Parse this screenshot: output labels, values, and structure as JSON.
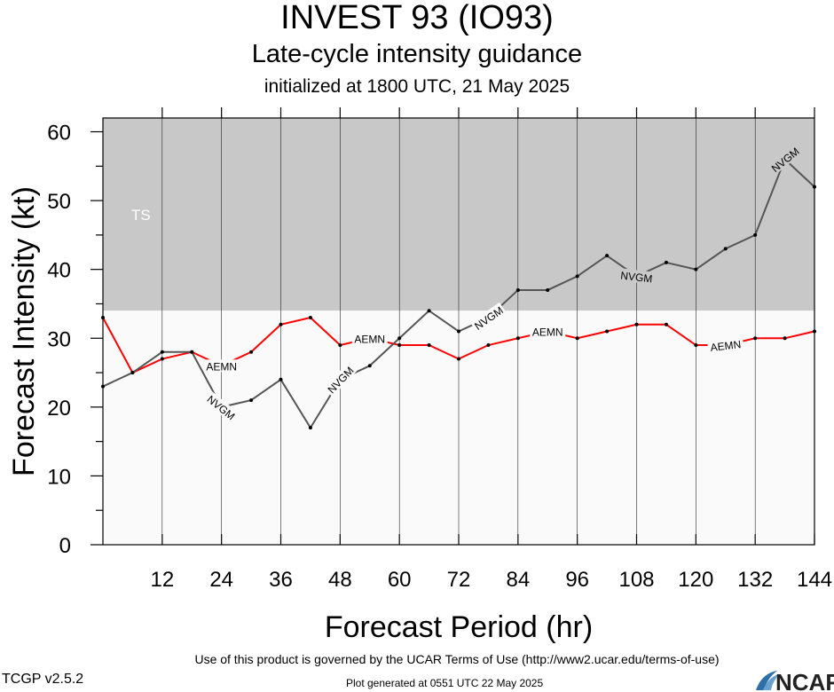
{
  "title": "INVEST 93 (IO93)",
  "subtitle": "Late-cycle intensity guidance",
  "initialized": "initialized at 1800 UTC, 21 May 2025",
  "footer": {
    "terms": "Use of this product is governed by the UCAR Terms of Use (http://www2.ucar.edu/terms-of-use)",
    "version": "TCGP v2.5.2",
    "generated": "Plot generated at 0551 UTC   22 May 2025",
    "logo_text": "NCAR"
  },
  "chart_data": {
    "type": "line",
    "xlabel": "Forecast Period (hr)",
    "ylabel": "Forecast Intensity (kt)",
    "xlim": [
      0,
      144
    ],
    "ylim": [
      0,
      62
    ],
    "x_ticks": [
      12,
      24,
      36,
      48,
      60,
      72,
      84,
      96,
      108,
      120,
      132,
      144
    ],
    "y_ticks": [
      0,
      10,
      20,
      30,
      40,
      50,
      60
    ],
    "grid": true,
    "bands": [
      {
        "label": "TS",
        "from": 34,
        "to": 62,
        "color": "#c8c8c8"
      },
      {
        "label": "",
        "from": 0,
        "to": 34,
        "color": "#fafafa"
      }
    ],
    "series": [
      {
        "name": "AEMN",
        "color": "#ff0000",
        "x": [
          0,
          6,
          12,
          18,
          24,
          30,
          36,
          42,
          48,
          54,
          60,
          66,
          72,
          78,
          84,
          90,
          96,
          102,
          108,
          114,
          120,
          126,
          132,
          138,
          144
        ],
        "y": [
          33,
          25,
          27,
          28,
          26,
          28,
          32,
          33,
          29,
          30,
          29,
          29,
          27,
          29,
          30,
          31,
          30,
          31,
          32,
          32,
          29,
          29,
          30,
          30,
          31
        ],
        "label_x": [
          24,
          54,
          90,
          126
        ]
      },
      {
        "name": "NVGM",
        "color": "#555555",
        "x": [
          0,
          6,
          12,
          18,
          24,
          30,
          36,
          42,
          48,
          54,
          60,
          66,
          72,
          78,
          84,
          90,
          96,
          102,
          108,
          114,
          120,
          126,
          132,
          138,
          144
        ],
        "y": [
          23,
          25,
          28,
          28,
          20,
          21,
          24,
          17,
          24,
          26,
          30,
          34,
          31,
          33,
          37,
          37,
          39,
          42,
          39,
          41,
          40,
          43,
          45,
          56,
          52
        ],
        "label_x": [
          24,
          48,
          78,
          108,
          138
        ]
      }
    ]
  }
}
